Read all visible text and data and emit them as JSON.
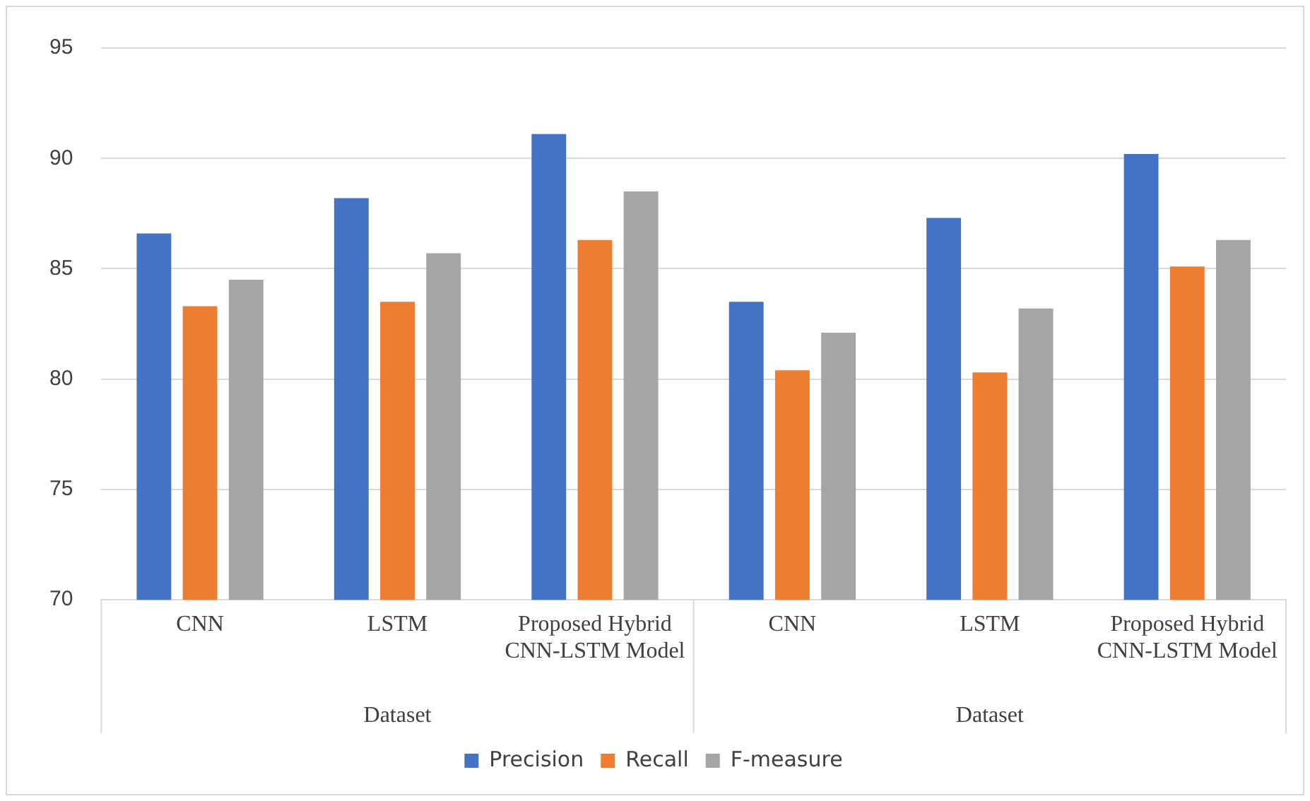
{
  "chart_data": {
    "type": "bar",
    "categories": [
      "CNN",
      "LSTM",
      "Proposed Hybrid CNN-LSTM Model",
      "CNN",
      "LSTM",
      "Proposed Hybrid CNN-LSTM Model"
    ],
    "series": [
      {
        "name": "Precision",
        "color": "#4472c4",
        "values": [
          86.6,
          88.2,
          91.1,
          83.5,
          87.3,
          90.2
        ]
      },
      {
        "name": "Recall",
        "color": "#ed7d31",
        "values": [
          83.3,
          83.5,
          86.3,
          80.4,
          80.3,
          85.1
        ]
      },
      {
        "name": "F-measure",
        "color": "#a5a5a5",
        "values": [
          84.5,
          85.7,
          88.5,
          82.1,
          83.2,
          86.3
        ]
      }
    ],
    "ylim": [
      70,
      95
    ],
    "yticks": [
      70,
      75,
      80,
      85,
      90,
      95
    ],
    "grid": "y",
    "legend": "bottom",
    "annotations": [
      "Dataset",
      "Dataset"
    ]
  }
}
